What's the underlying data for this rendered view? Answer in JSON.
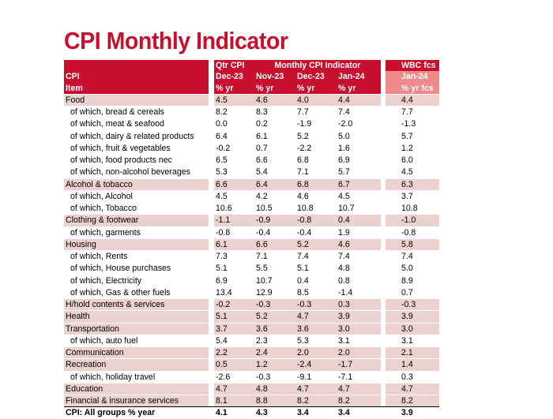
{
  "title": "CPI Monthly Indicator",
  "colors": {
    "accent": "#c8102e",
    "forecast_header": "#ef8a8a",
    "category_row": "#ecd2ce"
  },
  "chart_data": {
    "type": "table",
    "title": "CPI Monthly Indicator",
    "header": {
      "row1": {
        "qtr": "Qtr CPI",
        "monthly": "Monthly CPI Indicator",
        "wbc": "WBC fcs"
      },
      "row2": {
        "label": "CPI",
        "qtr": "Dec-23",
        "m1": "Nov-23",
        "m2": "Dec-23",
        "m3": "Jan-24",
        "wbc": "Jan-24"
      },
      "row3": {
        "label": "Item",
        "qtr": "% yr",
        "m1": "% yr",
        "m2": "% yr",
        "m3": "% yr",
        "wbc": "% yr fcs"
      }
    },
    "rows": [
      {
        "type": "cat",
        "label": "Food",
        "v": [
          "4.5",
          "4.6",
          "4.0",
          "4.4",
          "4.4"
        ]
      },
      {
        "type": "sub",
        "label": "of which, bread & cereals",
        "v": [
          "8.2",
          "8.3",
          "7.7",
          "7.4",
          "7.7"
        ]
      },
      {
        "type": "sub",
        "label": "of which, meat & seafood",
        "v": [
          "0.0",
          "0.2",
          "-1.9",
          "-2.0",
          "-1.3"
        ]
      },
      {
        "type": "sub",
        "label": "of which, dairy & related products",
        "v": [
          "6.4",
          "6.1",
          "5.2",
          "5.0",
          "5.7"
        ]
      },
      {
        "type": "sub",
        "label": "of which, fruit & vegetables",
        "v": [
          "-0.2",
          "0.7",
          "-2.2",
          "1.6",
          "1.2"
        ]
      },
      {
        "type": "sub",
        "label": "of which, food products nec",
        "v": [
          "6.5",
          "6.6",
          "6.8",
          "6.9",
          "6.0"
        ]
      },
      {
        "type": "sub",
        "label": "of which, non-alcohol beverages",
        "v": [
          "5.3",
          "5.4",
          "7.1",
          "5.7",
          "4.5"
        ]
      },
      {
        "type": "cat",
        "label": "Alcohol & tobacco",
        "v": [
          "6.6",
          "6.4",
          "6.8",
          "6.7",
          "6.3"
        ]
      },
      {
        "type": "sub",
        "label": "of which, Alcohol",
        "v": [
          "4.5",
          "4.2",
          "4.6",
          "4.5",
          "3.7"
        ]
      },
      {
        "type": "sub",
        "label": "of which, Tobacco",
        "v": [
          "10.6",
          "10.5",
          "10.8",
          "10.7",
          "10.8"
        ]
      },
      {
        "type": "cat",
        "label": "Clothing & footwear",
        "v": [
          "-1.1",
          "-0.9",
          "-0.8",
          "0.4",
          "-1.0"
        ]
      },
      {
        "type": "sub",
        "label": "of which, garments",
        "v": [
          "-0.8",
          "-0.4",
          "-0.4",
          "1.9",
          "-0.8"
        ]
      },
      {
        "type": "cat",
        "label": "Housing",
        "v": [
          "6.1",
          "6.6",
          "5.2",
          "4.6",
          "5.8"
        ]
      },
      {
        "type": "sub",
        "label": "of which, Rents",
        "v": [
          "7.3",
          "7.1",
          "7.4",
          "7.4",
          "7.4"
        ]
      },
      {
        "type": "sub",
        "label": "of which, House purchases",
        "v": [
          "5.1",
          "5.5",
          "5.1",
          "4.8",
          "5.0"
        ]
      },
      {
        "type": "sub",
        "label": "of which, Electricity",
        "v": [
          "6.9",
          "10.7",
          "0.4",
          "0.8",
          "8.9"
        ]
      },
      {
        "type": "sub",
        "label": "of which, Gas & other fuels",
        "v": [
          "13.4",
          "12.9",
          "8.5",
          "-1.4",
          "0.7"
        ]
      },
      {
        "type": "cat",
        "label": "H/hold contents & services",
        "v": [
          "-0.2",
          "-0.3",
          "-0.3",
          "0.3",
          "-0.3"
        ]
      },
      {
        "type": "cat",
        "label": "Health",
        "v": [
          "5.1",
          "5.2",
          "4.7",
          "3.9",
          "3.9"
        ]
      },
      {
        "type": "cat",
        "label": "Transportation",
        "v": [
          "3.7",
          "3.6",
          "3.6",
          "3.0",
          "3.0"
        ]
      },
      {
        "type": "sub",
        "label": "of which, auto fuel",
        "v": [
          "5.4",
          "2.3",
          "5.3",
          "3.1",
          "3.1"
        ]
      },
      {
        "type": "cat",
        "label": "Communication",
        "v": [
          "2.2",
          "2.4",
          "2.0",
          "2.0",
          "2.1"
        ]
      },
      {
        "type": "cat",
        "label": "Recreation",
        "v": [
          "0.5",
          "1.2",
          "-2.4",
          "-1.7",
          "1.4"
        ]
      },
      {
        "type": "sub",
        "label": "of which, holiday travel",
        "v": [
          "-2.6",
          "-0.3",
          "-9.1",
          "-7.1",
          "0.3"
        ]
      },
      {
        "type": "cat",
        "label": "Education",
        "v": [
          "4.7",
          "4.8",
          "4.7",
          "4.7",
          "4.7"
        ]
      },
      {
        "type": "cat",
        "label": "Financial & insurance services",
        "v": [
          "8.1",
          "8.8",
          "8.2",
          "8.2",
          "8.2"
        ]
      },
      {
        "type": "total",
        "label": "CPI: All groups % year",
        "v": [
          "4.1",
          "4.3",
          "3.4",
          "3.4",
          "3.9"
        ]
      }
    ]
  }
}
